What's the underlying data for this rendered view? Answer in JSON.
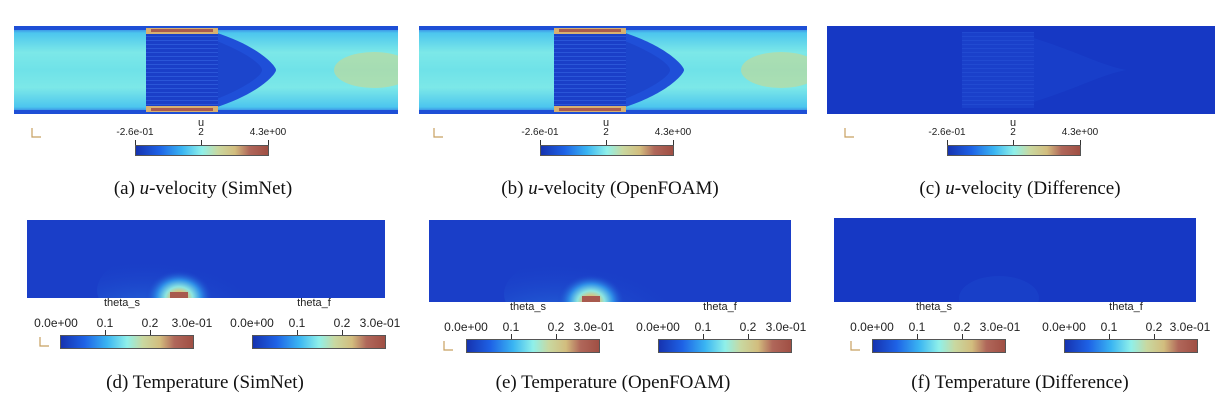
{
  "colors": {
    "cmap": [
      "#3b4cc0",
      "#1f5fe0",
      "#2f9bf0",
      "#7ee6ef",
      "#c8d9a0",
      "#e0c27a",
      "#b46a5a",
      "#9a4e40"
    ]
  },
  "top_row": {
    "colorbar": {
      "title": "u",
      "ticks": [
        "-2.6e-01",
        "2",
        "4.3e+00"
      ]
    },
    "panels": [
      {
        "id": "a",
        "caption_prefix": "(a) ",
        "caption_var": "u",
        "caption_rest": "-velocity (SimNet)"
      },
      {
        "id": "b",
        "caption_prefix": "(b) ",
        "caption_var": "u",
        "caption_rest": "-velocity (OpenFOAM)"
      },
      {
        "id": "c",
        "caption_prefix": "(c) ",
        "caption_var": "u",
        "caption_rest": "-velocity (Difference)"
      }
    ]
  },
  "bottom_row": {
    "colorbars": [
      {
        "title": "theta_s",
        "ticks": [
          "0.0e+00",
          "0.1",
          "0.2",
          "3.0e-01"
        ]
      },
      {
        "title": "theta_f",
        "ticks": [
          "0.0e+00",
          "0.1",
          "0.2",
          "3.0e-01"
        ]
      }
    ],
    "panels": [
      {
        "id": "d",
        "caption": "(d) Temperature (SimNet)"
      },
      {
        "id": "e",
        "caption": "(e) Temperature (OpenFOAM)"
      },
      {
        "id": "f",
        "caption": "(f) Temperature (Difference)"
      }
    ]
  }
}
